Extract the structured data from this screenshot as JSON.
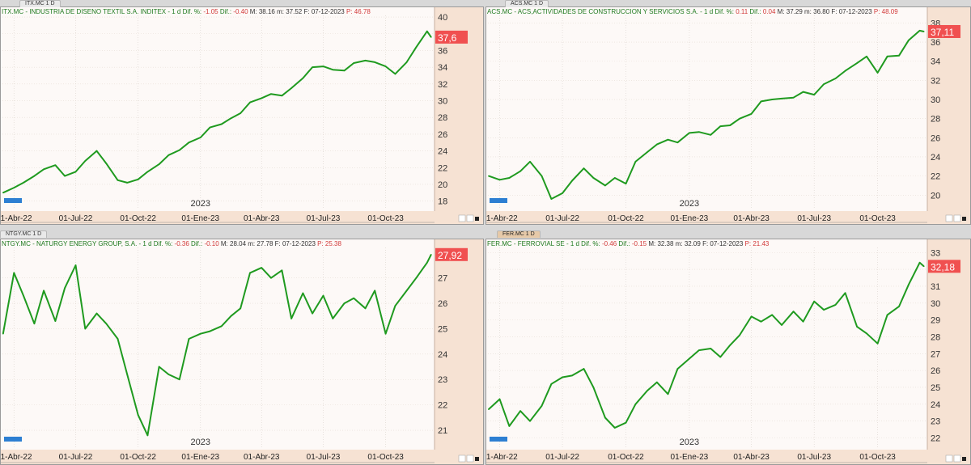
{
  "tabs": [
    {
      "label": "ITX.MC 1 D"
    },
    {
      "label": "ACS.MC 1 D"
    },
    {
      "label": "NTGY.MC 1 D"
    },
    {
      "label": "FER.MC 1 D"
    }
  ],
  "colors": {
    "line": "#1f9a1f",
    "price_badge": "#f05050",
    "axis_band": "#f6e2d3",
    "plot_bg": "#fdf9f7"
  },
  "chart_data": [
    {
      "type": "line",
      "header": {
        "name": "ITX.MC - INDUSTRIA DE DISENO TEXTIL S.A. INDITEX",
        "dif_pct": "-1.05",
        "dif": "-0.40",
        "max": "38.16",
        "min": "37.52",
        "date": "07-12-2023",
        "p": "46.78"
      },
      "last_value": "37,6",
      "year_label": "2023",
      "x_tick_labels": [
        "01-Abr-22",
        "01-Jul-22",
        "01-Oct-22",
        "01-Ene-23",
        "01-Abr-23",
        "01-Jul-23",
        "01-Oct-23"
      ],
      "y_tick_labels": [
        "18",
        "20",
        "22",
        "24",
        "26",
        "28",
        "30",
        "32",
        "34",
        "36",
        "38",
        "40"
      ],
      "ylim": [
        17,
        40.2
      ],
      "x": [
        "2022-03-16",
        "2022-04-01",
        "2022-04-15",
        "2022-05-01",
        "2022-05-15",
        "2022-06-01",
        "2022-06-15",
        "2022-07-01",
        "2022-07-15",
        "2022-08-01",
        "2022-08-15",
        "2022-09-01",
        "2022-09-15",
        "2022-10-01",
        "2022-10-15",
        "2022-11-01",
        "2022-11-15",
        "2022-12-01",
        "2022-12-15",
        "2023-01-01",
        "2023-01-15",
        "2023-02-01",
        "2023-02-15",
        "2023-03-01",
        "2023-03-15",
        "2023-04-01",
        "2023-04-15",
        "2023-05-01",
        "2023-05-15",
        "2023-06-01",
        "2023-06-15",
        "2023-07-01",
        "2023-07-15",
        "2023-08-01",
        "2023-08-15",
        "2023-09-01",
        "2023-09-15",
        "2023-10-01",
        "2023-10-15",
        "2023-11-01",
        "2023-11-15",
        "2023-12-01",
        "2023-12-07"
      ],
      "values": [
        19.0,
        19.6,
        20.2,
        21.0,
        21.8,
        22.3,
        21.0,
        21.5,
        22.8,
        24.0,
        22.5,
        20.5,
        20.2,
        20.6,
        21.5,
        22.4,
        23.5,
        24.1,
        25.0,
        25.6,
        26.8,
        27.2,
        27.9,
        28.5,
        29.8,
        30.3,
        30.8,
        30.6,
        31.5,
        32.7,
        34.0,
        34.1,
        33.7,
        33.6,
        34.5,
        34.8,
        34.6,
        34.1,
        33.2,
        34.6,
        36.4,
        38.3,
        37.6
      ]
    },
    {
      "type": "line",
      "header": {
        "name": "ACS.MC - ACS,ACTIVIDADES DE CONSTRUCCION Y SERVICIOS S.A.",
        "dif_pct": "0.11",
        "dif": "0.04",
        "max": "37.29",
        "min": "36.80",
        "date": "07-12-2023",
        "p": "48.09"
      },
      "last_value": "37,11",
      "year_label": "2023",
      "x_tick_labels": [
        "01-Abr-22",
        "01-Jul-22",
        "01-Oct-22",
        "01-Ene-23",
        "01-Abr-23",
        "01-Jul-23",
        "01-Oct-23"
      ],
      "y_tick_labels": [
        "20",
        "22",
        "24",
        "26",
        "28",
        "30",
        "32",
        "34",
        "36",
        "38"
      ],
      "ylim": [
        18.5,
        38.8
      ],
      "x": [
        "2022-03-16",
        "2022-04-01",
        "2022-04-15",
        "2022-05-01",
        "2022-05-15",
        "2022-06-01",
        "2022-06-15",
        "2022-07-01",
        "2022-07-15",
        "2022-08-01",
        "2022-08-15",
        "2022-09-01",
        "2022-09-15",
        "2022-10-01",
        "2022-10-15",
        "2022-11-01",
        "2022-11-15",
        "2022-12-01",
        "2022-12-15",
        "2023-01-01",
        "2023-01-15",
        "2023-02-01",
        "2023-02-15",
        "2023-03-01",
        "2023-03-15",
        "2023-04-01",
        "2023-04-15",
        "2023-05-01",
        "2023-05-15",
        "2023-06-01",
        "2023-06-15",
        "2023-07-01",
        "2023-07-15",
        "2023-08-01",
        "2023-08-15",
        "2023-09-01",
        "2023-09-15",
        "2023-10-01",
        "2023-10-15",
        "2023-11-01",
        "2023-11-15",
        "2023-12-01",
        "2023-12-07"
      ],
      "values": [
        22.0,
        21.6,
        21.8,
        22.5,
        23.5,
        22.0,
        19.6,
        20.2,
        21.5,
        22.8,
        21.8,
        21.0,
        21.8,
        21.2,
        23.5,
        24.5,
        25.3,
        25.8,
        25.5,
        26.5,
        26.6,
        26.3,
        27.2,
        27.3,
        28.0,
        28.5,
        29.8,
        30.0,
        30.1,
        30.2,
        30.8,
        30.5,
        31.6,
        32.2,
        33.0,
        33.8,
        34.5,
        32.8,
        34.5,
        34.6,
        36.2,
        37.2,
        37.11
      ]
    },
    {
      "type": "line",
      "header": {
        "name": "NTGY.MC - NATURGY ENERGY GROUP, S.A.",
        "dif_pct": "-0.36",
        "dif": "-0.10",
        "max": "28.04",
        "min": "27.78",
        "date": "07-12-2023",
        "p": "25.38"
      },
      "last_value": "27,92",
      "year_label": "2023",
      "x_tick_labels": [
        "01-Abr-22",
        "01-Jul-22",
        "01-Oct-22",
        "01-Ene-23",
        "01-Abr-23",
        "01-Jul-23",
        "01-Oct-23"
      ],
      "y_tick_labels": [
        "21",
        "22",
        "23",
        "24",
        "25",
        "26",
        "27"
      ],
      "ylim": [
        20.3,
        28.2
      ],
      "x": [
        "2022-03-16",
        "2022-04-01",
        "2022-04-15",
        "2022-05-01",
        "2022-05-15",
        "2022-06-01",
        "2022-06-15",
        "2022-07-01",
        "2022-07-15",
        "2022-08-01",
        "2022-08-15",
        "2022-09-01",
        "2022-09-15",
        "2022-10-01",
        "2022-10-15",
        "2022-11-01",
        "2022-11-15",
        "2022-12-01",
        "2022-12-15",
        "2023-01-01",
        "2023-01-15",
        "2023-02-01",
        "2023-02-15",
        "2023-03-01",
        "2023-03-15",
        "2023-04-01",
        "2023-04-15",
        "2023-05-01",
        "2023-05-15",
        "2023-06-01",
        "2023-06-15",
        "2023-07-01",
        "2023-07-15",
        "2023-08-01",
        "2023-08-15",
        "2023-09-01",
        "2023-09-15",
        "2023-10-01",
        "2023-10-15",
        "2023-11-01",
        "2023-11-15",
        "2023-12-01",
        "2023-12-07"
      ],
      "values": [
        24.8,
        27.2,
        26.3,
        25.2,
        26.5,
        25.3,
        26.6,
        27.5,
        25.0,
        25.6,
        25.2,
        24.6,
        23.2,
        21.6,
        20.8,
        23.5,
        23.2,
        23.0,
        24.6,
        24.8,
        24.9,
        25.1,
        25.5,
        25.8,
        27.2,
        27.4,
        27.0,
        27.3,
        25.4,
        26.4,
        25.6,
        26.3,
        25.4,
        26.0,
        26.2,
        25.8,
        26.5,
        24.8,
        25.9,
        26.5,
        27.0,
        27.6,
        27.92
      ]
    },
    {
      "type": "line",
      "header": {
        "name": "FER.MC - FERROVIAL SE",
        "dif_pct": "-0.46",
        "dif": "-0.15",
        "max": "32.38",
        "min": "32.09",
        "date": "07-12-2023",
        "p": "21.43"
      },
      "last_value": "32,18",
      "year_label": "2023",
      "x_tick_labels": [
        "01-Abr-22",
        "01-Jul-22",
        "01-Oct-22",
        "01-Ene-23",
        "01-Abr-23",
        "01-Jul-23",
        "01-Oct-23"
      ],
      "y_tick_labels": [
        "22",
        "23",
        "24",
        "25",
        "26",
        "27",
        "28",
        "29",
        "30",
        "31",
        "32",
        "33"
      ],
      "ylim": [
        21.4,
        33.3
      ],
      "x": [
        "2022-03-16",
        "2022-04-01",
        "2022-04-15",
        "2022-05-01",
        "2022-05-15",
        "2022-06-01",
        "2022-06-15",
        "2022-07-01",
        "2022-07-15",
        "2022-08-01",
        "2022-08-15",
        "2022-09-01",
        "2022-09-15",
        "2022-10-01",
        "2022-10-15",
        "2022-11-01",
        "2022-11-15",
        "2022-12-01",
        "2022-12-15",
        "2023-01-01",
        "2023-01-15",
        "2023-02-01",
        "2023-02-15",
        "2023-03-01",
        "2023-03-15",
        "2023-04-01",
        "2023-04-15",
        "2023-05-01",
        "2023-05-15",
        "2023-06-01",
        "2023-06-15",
        "2023-07-01",
        "2023-07-15",
        "2023-08-01",
        "2023-08-15",
        "2023-09-01",
        "2023-09-15",
        "2023-10-01",
        "2023-10-15",
        "2023-11-01",
        "2023-11-15",
        "2023-12-01",
        "2023-12-07"
      ],
      "values": [
        23.7,
        24.3,
        22.7,
        23.6,
        23.0,
        23.9,
        25.2,
        25.6,
        25.7,
        26.1,
        25.0,
        23.2,
        22.6,
        22.9,
        24.0,
        24.8,
        25.3,
        24.6,
        26.1,
        26.7,
        27.2,
        27.3,
        26.8,
        27.5,
        28.1,
        29.2,
        28.9,
        29.3,
        28.7,
        29.5,
        28.9,
        30.1,
        29.6,
        29.9,
        30.6,
        28.6,
        28.2,
        27.6,
        29.3,
        29.8,
        31.1,
        32.4,
        32.18
      ]
    }
  ]
}
